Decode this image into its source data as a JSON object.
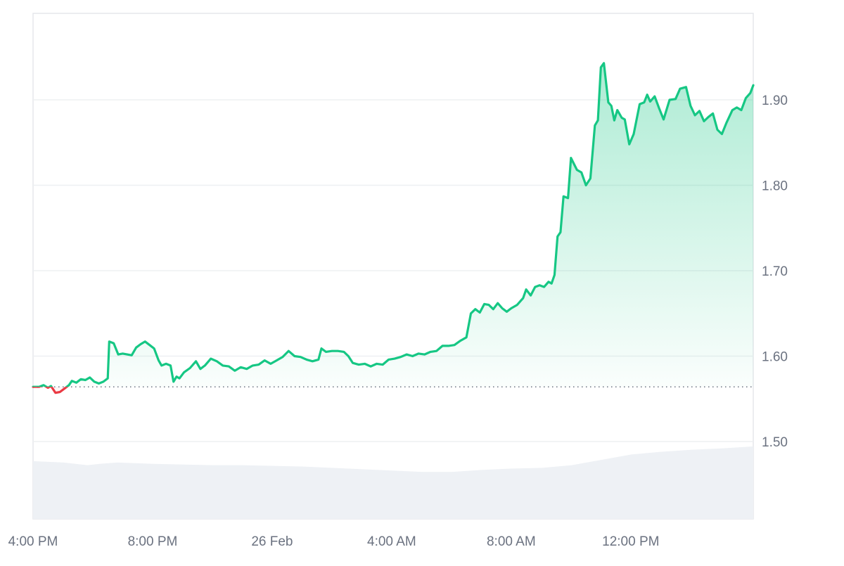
{
  "chart_data": {
    "type": "line",
    "title": "",
    "xlabel": "",
    "ylabel": "",
    "ylim": [
      1.41,
      2.0
    ],
    "grid": true,
    "legend": "none",
    "colors": {
      "up_line": "#16c784",
      "down_line": "#ea3943",
      "fill_top": "#16c784",
      "grid": "#eef0f2",
      "baseline_dots": "#6b7280",
      "axis_text": "#6b7280",
      "volume": "#eef1f5"
    },
    "baseline": 1.564,
    "y_ticks": [
      {
        "value": 1.9,
        "label": "1.90"
      },
      {
        "value": 1.8,
        "label": "1.80"
      },
      {
        "value": 1.7,
        "label": "1.70"
      },
      {
        "value": 1.6,
        "label": "1.60"
      },
      {
        "value": 1.5,
        "label": "1.50"
      }
    ],
    "x_ticks": [
      {
        "hour": 0,
        "label": "4:00 PM"
      },
      {
        "hour": 4,
        "label": "8:00 PM"
      },
      {
        "hour": 8,
        "label": "26 Feb"
      },
      {
        "hour": 12,
        "label": "4:00 AM"
      },
      {
        "hour": 16,
        "label": "8:00 AM"
      },
      {
        "hour": 20,
        "label": "12:00 PM"
      }
    ],
    "x_range_hours": [
      0,
      24.1
    ],
    "series": [
      {
        "name": "Price",
        "points": [
          [
            0.0,
            1.564
          ],
          [
            0.2,
            1.564
          ],
          [
            0.35,
            1.566
          ],
          [
            0.5,
            1.563
          ],
          [
            0.6,
            1.565
          ],
          [
            0.75,
            1.557
          ],
          [
            0.9,
            1.558
          ],
          [
            1.05,
            1.562
          ],
          [
            1.2,
            1.566
          ],
          [
            1.3,
            1.571
          ],
          [
            1.45,
            1.569
          ],
          [
            1.6,
            1.573
          ],
          [
            1.75,
            1.572
          ],
          [
            1.9,
            1.575
          ],
          [
            2.05,
            1.57
          ],
          [
            2.2,
            1.568
          ],
          [
            2.35,
            1.57
          ],
          [
            2.5,
            1.574
          ],
          [
            2.55,
            1.617
          ],
          [
            2.7,
            1.615
          ],
          [
            2.85,
            1.602
          ],
          [
            3.0,
            1.603
          ],
          [
            3.15,
            1.602
          ],
          [
            3.3,
            1.601
          ],
          [
            3.45,
            1.61
          ],
          [
            3.6,
            1.614
          ],
          [
            3.75,
            1.617
          ],
          [
            3.9,
            1.613
          ],
          [
            4.05,
            1.609
          ],
          [
            4.2,
            1.595
          ],
          [
            4.3,
            1.589
          ],
          [
            4.45,
            1.591
          ],
          [
            4.6,
            1.589
          ],
          [
            4.7,
            1.57
          ],
          [
            4.8,
            1.576
          ],
          [
            4.9,
            1.574
          ],
          [
            5.05,
            1.581
          ],
          [
            5.25,
            1.586
          ],
          [
            5.45,
            1.594
          ],
          [
            5.6,
            1.585
          ],
          [
            5.75,
            1.589
          ],
          [
            5.95,
            1.597
          ],
          [
            6.15,
            1.594
          ],
          [
            6.35,
            1.589
          ],
          [
            6.55,
            1.588
          ],
          [
            6.75,
            1.583
          ],
          [
            6.95,
            1.587
          ],
          [
            7.15,
            1.585
          ],
          [
            7.35,
            1.589
          ],
          [
            7.55,
            1.59
          ],
          [
            7.75,
            1.595
          ],
          [
            7.95,
            1.591
          ],
          [
            8.15,
            1.595
          ],
          [
            8.35,
            1.599
          ],
          [
            8.55,
            1.606
          ],
          [
            8.75,
            1.6
          ],
          [
            8.95,
            1.599
          ],
          [
            9.15,
            1.596
          ],
          [
            9.35,
            1.594
          ],
          [
            9.55,
            1.596
          ],
          [
            9.65,
            1.609
          ],
          [
            9.8,
            1.605
          ],
          [
            10.0,
            1.606
          ],
          [
            10.2,
            1.606
          ],
          [
            10.4,
            1.605
          ],
          [
            10.55,
            1.6
          ],
          [
            10.7,
            1.592
          ],
          [
            10.9,
            1.59
          ],
          [
            11.1,
            1.591
          ],
          [
            11.3,
            1.588
          ],
          [
            11.5,
            1.591
          ],
          [
            11.7,
            1.59
          ],
          [
            11.9,
            1.596
          ],
          [
            12.1,
            1.597
          ],
          [
            12.3,
            1.599
          ],
          [
            12.5,
            1.602
          ],
          [
            12.7,
            1.6
          ],
          [
            12.9,
            1.603
          ],
          [
            13.1,
            1.602
          ],
          [
            13.3,
            1.605
          ],
          [
            13.5,
            1.606
          ],
          [
            13.7,
            1.612
          ],
          [
            13.9,
            1.612
          ],
          [
            14.1,
            1.613
          ],
          [
            14.3,
            1.618
          ],
          [
            14.5,
            1.622
          ],
          [
            14.65,
            1.65
          ],
          [
            14.8,
            1.655
          ],
          [
            14.95,
            1.651
          ],
          [
            15.1,
            1.661
          ],
          [
            15.25,
            1.66
          ],
          [
            15.4,
            1.655
          ],
          [
            15.55,
            1.662
          ],
          [
            15.7,
            1.656
          ],
          [
            15.85,
            1.652
          ],
          [
            16.0,
            1.656
          ],
          [
            16.2,
            1.66
          ],
          [
            16.4,
            1.668
          ],
          [
            16.5,
            1.678
          ],
          [
            16.65,
            1.671
          ],
          [
            16.8,
            1.681
          ],
          [
            16.95,
            1.683
          ],
          [
            17.1,
            1.681
          ],
          [
            17.25,
            1.687
          ],
          [
            17.35,
            1.685
          ],
          [
            17.45,
            1.695
          ],
          [
            17.55,
            1.74
          ],
          [
            17.65,
            1.745
          ],
          [
            17.75,
            1.787
          ],
          [
            17.9,
            1.785
          ],
          [
            18.0,
            1.832
          ],
          [
            18.2,
            1.818
          ],
          [
            18.35,
            1.815
          ],
          [
            18.5,
            1.8
          ],
          [
            18.65,
            1.808
          ],
          [
            18.8,
            1.87
          ],
          [
            18.9,
            1.876
          ],
          [
            19.0,
            1.938
          ],
          [
            19.1,
            1.943
          ],
          [
            19.25,
            1.897
          ],
          [
            19.35,
            1.893
          ],
          [
            19.45,
            1.876
          ],
          [
            19.55,
            1.888
          ],
          [
            19.7,
            1.879
          ],
          [
            19.8,
            1.877
          ],
          [
            19.95,
            1.848
          ],
          [
            20.1,
            1.86
          ],
          [
            20.3,
            1.895
          ],
          [
            20.45,
            1.897
          ],
          [
            20.55,
            1.906
          ],
          [
            20.65,
            1.898
          ],
          [
            20.8,
            1.904
          ],
          [
            20.95,
            1.89
          ],
          [
            21.1,
            1.877
          ],
          [
            21.3,
            1.9
          ],
          [
            21.5,
            1.901
          ],
          [
            21.65,
            1.913
          ],
          [
            21.85,
            1.915
          ],
          [
            22.0,
            1.893
          ],
          [
            22.15,
            1.882
          ],
          [
            22.3,
            1.887
          ],
          [
            22.45,
            1.875
          ],
          [
            22.6,
            1.88
          ],
          [
            22.75,
            1.884
          ],
          [
            22.9,
            1.865
          ],
          [
            23.05,
            1.86
          ],
          [
            23.2,
            1.873
          ],
          [
            23.4,
            1.888
          ],
          [
            23.55,
            1.891
          ],
          [
            23.7,
            1.888
          ],
          [
            23.85,
            1.902
          ],
          [
            24.0,
            1.908
          ],
          [
            24.1,
            1.917
          ]
        ]
      },
      {
        "name": "Volume",
        "render": "bars",
        "points": [
          [
            0.0,
            0.86
          ],
          [
            1.0,
            0.84
          ],
          [
            1.8,
            0.8
          ],
          [
            2.2,
            0.82
          ],
          [
            2.8,
            0.84
          ],
          [
            4.0,
            0.82
          ],
          [
            5.0,
            0.81
          ],
          [
            6.0,
            0.8
          ],
          [
            7.0,
            0.8
          ],
          [
            8.0,
            0.79
          ],
          [
            9.0,
            0.78
          ],
          [
            10.0,
            0.76
          ],
          [
            11.0,
            0.74
          ],
          [
            12.0,
            0.72
          ],
          [
            13.0,
            0.7
          ],
          [
            14.0,
            0.7
          ],
          [
            15.0,
            0.73
          ],
          [
            16.0,
            0.75
          ],
          [
            17.0,
            0.76
          ],
          [
            18.0,
            0.8
          ],
          [
            19.0,
            0.88
          ],
          [
            20.0,
            0.96
          ],
          [
            21.0,
            1.0
          ],
          [
            22.0,
            1.03
          ],
          [
            23.0,
            1.05
          ],
          [
            24.1,
            1.08
          ]
        ]
      }
    ]
  }
}
